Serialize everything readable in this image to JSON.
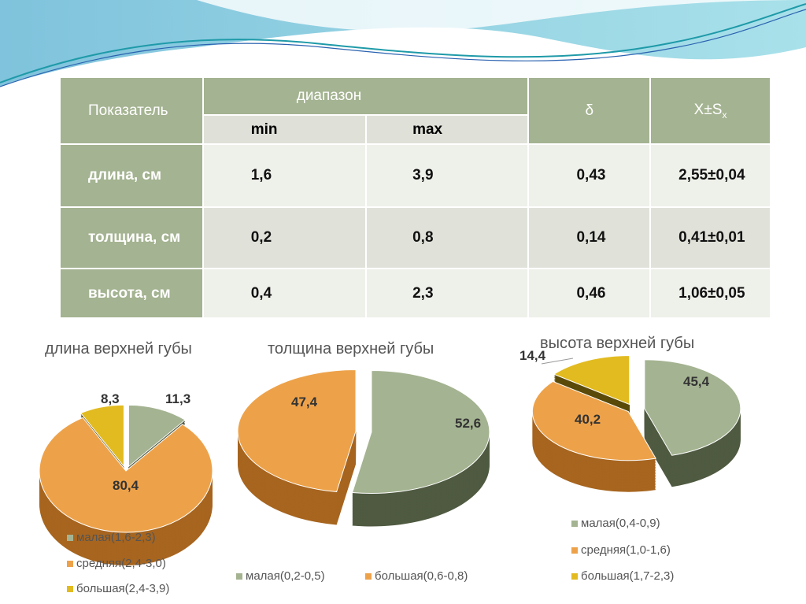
{
  "table": {
    "header": {
      "indicator": "Показатель",
      "range": "диапазон",
      "min": "min",
      "max": "max",
      "delta": "δ",
      "mean": "X±S",
      "mean_sub": "x"
    },
    "rows": [
      {
        "label": "длина, см",
        "min": "1,6",
        "max": "3,9",
        "delta": "0,43",
        "mean": "2,55±0,04"
      },
      {
        "label": "толщина, см",
        "min": "0,2",
        "max": "0,8",
        "delta": "0,14",
        "mean": "0,41±0,01"
      },
      {
        "label": "высота, см",
        "min": "0,4",
        "max": "2,3",
        "delta": "0,46",
        "mean": "1,06±0,05"
      }
    ]
  },
  "colors": {
    "green": "#a4b391",
    "orange": "#eda24a",
    "yellow": "#e2bb21",
    "header": "#a4b391"
  },
  "chart_data": [
    {
      "type": "pie",
      "title": "длина верхней губы",
      "labels": [
        "малая(1,6-2,3)",
        "средняя(2,4-3,0)",
        "большая(2,4-3,9)"
      ],
      "values": [
        11.3,
        80.4,
        8.3
      ],
      "value_labels": [
        "11,3",
        "80,4",
        "8,3"
      ]
    },
    {
      "type": "pie",
      "title": "толщина верхней губы",
      "labels": [
        "малая(0,2-0,5)",
        "большая(0,6-0,8)"
      ],
      "values": [
        52.6,
        47.4
      ],
      "value_labels": [
        "52,6",
        "47,4"
      ]
    },
    {
      "type": "pie",
      "title": "высота верхней губы",
      "labels": [
        "малая(0,4-0,9)",
        "средняя(1,0-1,6)",
        "большая(1,7-2,3)"
      ],
      "values": [
        45.4,
        40.2,
        14.4
      ],
      "value_labels": [
        "45,4",
        "40,2",
        "14,4"
      ]
    }
  ]
}
